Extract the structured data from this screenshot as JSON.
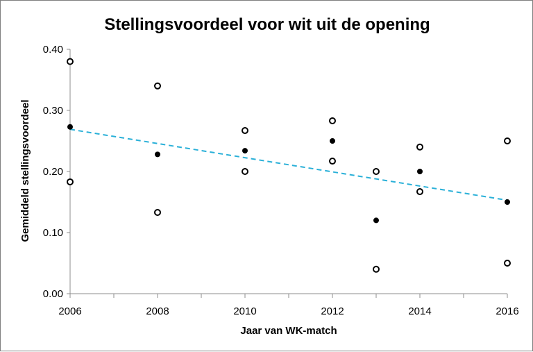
{
  "chart_data": {
    "type": "scatter",
    "title": "Stellingsvoordeel voor wit uit de opening",
    "xlabel": "Jaar van WK-match",
    "ylabel": "Gemiddeld stellingsvoordeel",
    "xlim": [
      2006,
      2016
    ],
    "ylim": [
      0.0,
      0.4
    ],
    "x_ticks": [
      "2006",
      "2008",
      "2010",
      "2012",
      "2014",
      "2016"
    ],
    "y_ticks": [
      "0.00",
      "0.10",
      "0.20",
      "0.30",
      "0.40"
    ],
    "legend": "none",
    "grid": false,
    "series": [
      {
        "marker": "filled",
        "color": "#000000",
        "x": [
          2006,
          2008,
          2010,
          2012,
          2013,
          2014,
          2016
        ],
        "y": [
          0.273,
          0.228,
          0.234,
          0.25,
          0.12,
          0.2,
          0.15
        ]
      },
      {
        "marker": "open",
        "color": "#000000",
        "x": [
          2006,
          2006,
          2008,
          2008,
          2010,
          2010,
          2012,
          2012,
          2013,
          2013,
          2014,
          2014,
          2016,
          2016
        ],
        "y": [
          0.38,
          0.183,
          0.34,
          0.133,
          0.267,
          0.2,
          0.283,
          0.217,
          0.2,
          0.04,
          0.24,
          0.167,
          0.25,
          0.05
        ]
      }
    ],
    "trendline": {
      "style": "dashed",
      "color": "#2ab0d8",
      "x": [
        2006,
        2016
      ],
      "y": [
        0.269,
        0.153
      ]
    }
  }
}
